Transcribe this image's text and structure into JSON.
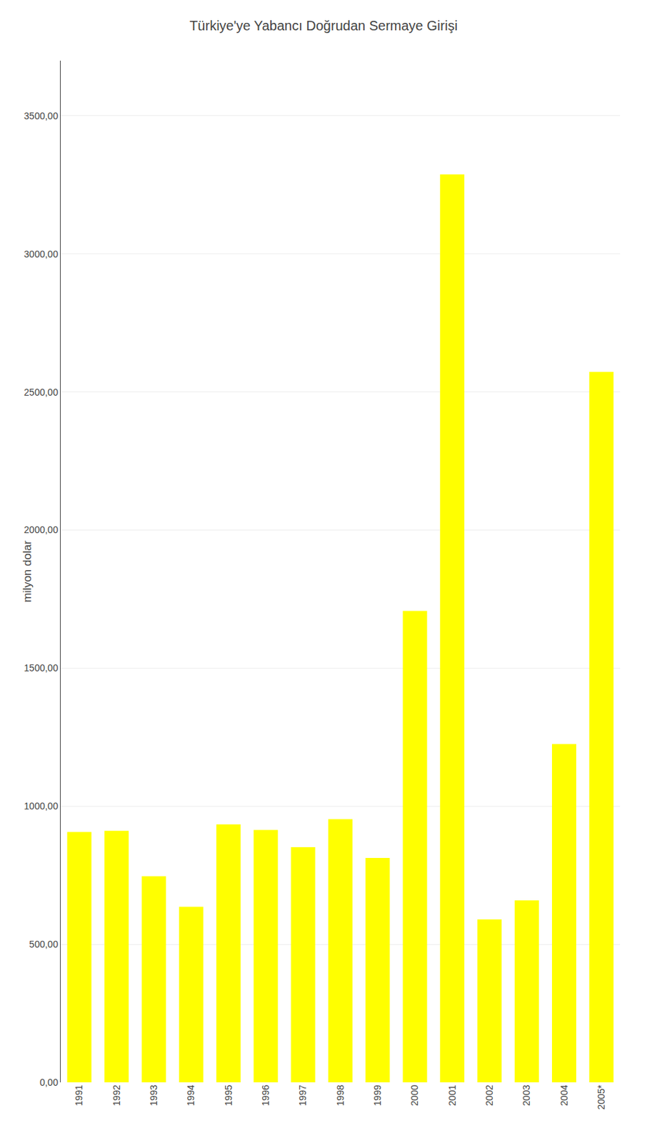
{
  "chart_data": {
    "type": "bar",
    "title": "Türkiye'ye Yabancı Doğrudan Sermaye Girişi",
    "ylabel": "milyon dolar",
    "categories": [
      "1991",
      "1992",
      "1993",
      "1994",
      "1995",
      "1996",
      "1997",
      "1998",
      "1999",
      "2000",
      "2001",
      "2002",
      "2003",
      "2004",
      "2005*"
    ],
    "values": [
      907,
      911,
      746,
      636,
      934,
      914,
      852,
      953,
      813,
      1707,
      3288,
      590,
      659,
      1225,
      2573
    ],
    "color": "#ffff00",
    "ylim": [
      0,
      3700
    ],
    "yticks": [
      {
        "value": 0,
        "label": "0,00"
      },
      {
        "value": 500,
        "label": "500,00"
      },
      {
        "value": 1000,
        "label": "1000,00"
      },
      {
        "value": 1500,
        "label": "1500,00"
      },
      {
        "value": 2000,
        "label": "2000,00"
      },
      {
        "value": 2500,
        "label": "2500,00"
      },
      {
        "value": 3000,
        "label": "3000,00"
      },
      {
        "value": 3500,
        "label": "3500,00"
      }
    ],
    "grid": true
  }
}
